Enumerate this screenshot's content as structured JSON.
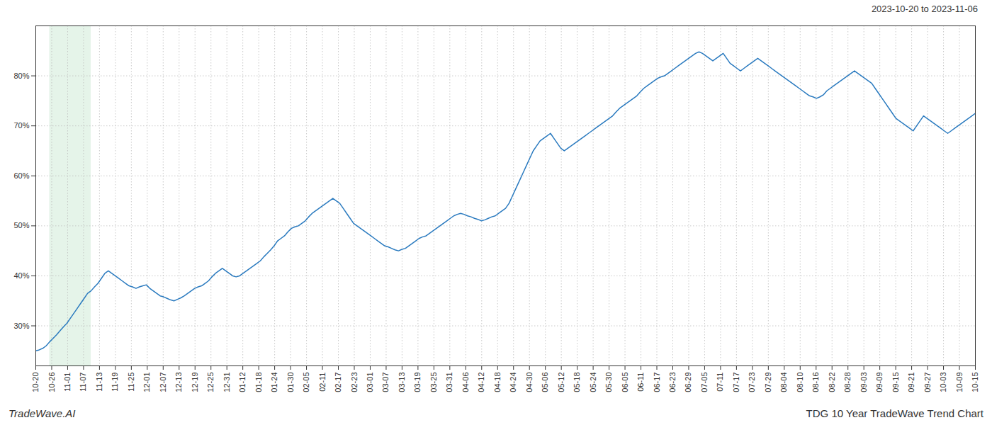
{
  "chart_data": {
    "type": "line",
    "title": "TDG 10 Year TradeWave Trend Chart",
    "subtitle": "2023-10-20 to 2023-11-06",
    "annotations": [
      {
        "type": "text",
        "text": "TradeWave.AI"
      },
      {
        "type": "span",
        "x": [
          4,
          16
        ],
        "color": "#d4edda"
      }
    ],
    "color": "#2a7abf",
    "grid": true,
    "x": [
      0,
      1,
      2,
      3,
      4,
      5,
      6,
      7,
      8,
      9,
      10,
      11,
      12,
      13,
      14,
      15,
      16,
      17,
      18,
      19,
      20,
      21,
      22,
      23,
      24,
      25,
      26,
      27,
      28,
      29,
      30,
      31,
      32,
      33,
      34,
      35,
      36,
      37,
      38,
      39,
      40,
      41,
      42,
      43,
      44,
      45,
      46,
      47,
      48,
      49,
      50,
      51,
      52,
      53,
      54,
      55,
      56,
      57,
      58,
      59,
      60,
      61,
      62,
      63,
      64,
      65,
      66,
      67,
      68,
      69,
      70,
      71,
      72,
      73,
      74,
      75,
      76,
      77,
      78,
      79,
      80,
      81,
      82,
      83,
      84,
      85,
      86,
      87,
      88,
      89,
      90,
      91,
      92,
      93,
      94,
      95,
      96,
      97,
      98,
      99,
      100,
      101,
      102,
      103,
      104,
      105,
      106,
      107,
      108,
      109,
      110,
      111,
      112,
      113,
      114,
      115,
      116,
      117,
      118,
      119,
      120,
      121,
      122,
      123,
      124,
      125,
      126,
      127,
      128,
      129,
      130,
      131,
      132,
      133,
      134,
      135,
      136,
      137,
      138,
      139,
      140,
      141,
      142,
      143,
      144,
      145,
      146,
      147,
      148,
      149,
      150,
      151,
      152,
      153,
      154,
      155,
      156,
      157,
      158,
      159,
      160,
      161,
      162,
      163,
      164,
      165,
      166,
      167,
      168,
      169,
      170,
      171,
      172,
      173,
      174,
      175,
      176,
      177,
      178,
      179,
      180,
      181,
      182,
      183,
      184,
      185,
      186,
      187,
      188,
      189,
      190,
      191,
      192,
      193,
      194,
      195,
      196,
      197,
      198,
      199,
      200,
      201,
      202,
      203,
      204,
      205,
      206,
      207,
      208,
      209,
      210,
      211,
      212,
      213,
      214,
      215,
      216,
      217,
      218,
      219,
      220,
      221,
      222,
      223,
      224,
      225,
      226,
      227,
      228,
      229,
      230,
      231,
      232,
      233,
      234,
      235,
      236,
      237,
      238,
      239,
      240,
      241,
      242,
      243,
      244,
      245,
      246,
      247,
      248,
      249,
      250,
      251,
      252,
      253,
      254,
      255,
      256,
      257,
      258,
      259,
      260,
      261,
      262,
      263,
      264,
      265,
      266,
      267,
      268,
      269,
      270,
      271,
      272
    ],
    "values": [
      25.0,
      25.2,
      25.5,
      26.0,
      26.8,
      27.5,
      28.2,
      29.0,
      29.8,
      30.5,
      31.5,
      32.5,
      33.5,
      34.5,
      35.5,
      36.5,
      37.0,
      37.8,
      38.5,
      39.5,
      40.5,
      41.0,
      40.5,
      40.0,
      39.5,
      39.0,
      38.5,
      38.0,
      37.8,
      37.5,
      37.8,
      38.0,
      38.2,
      37.5,
      37.0,
      36.5,
      36.0,
      35.8,
      35.5,
      35.2,
      35.0,
      35.3,
      35.6,
      36.0,
      36.5,
      37.0,
      37.5,
      37.8,
      38.0,
      38.5,
      39.0,
      39.8,
      40.5,
      41.0,
      41.5,
      41.0,
      40.5,
      40.0,
      39.8,
      40.0,
      40.5,
      41.0,
      41.5,
      42.0,
      42.5,
      43.0,
      43.8,
      44.5,
      45.2,
      46.0,
      47.0,
      47.5,
      48.0,
      48.8,
      49.5,
      49.8,
      50.0,
      50.5,
      51.0,
      51.8,
      52.5,
      53.0,
      53.5,
      54.0,
      54.5,
      55.0,
      55.5,
      55.0,
      54.5,
      53.5,
      52.5,
      51.5,
      50.5,
      50.0,
      49.5,
      49.0,
      48.5,
      48.0,
      47.5,
      47.0,
      46.5,
      46.0,
      45.8,
      45.5,
      45.2,
      45.0,
      45.3,
      45.5,
      46.0,
      46.5,
      47.0,
      47.5,
      47.8,
      48.0,
      48.5,
      49.0,
      49.5,
      50.0,
      50.5,
      51.0,
      51.5,
      52.0,
      52.3,
      52.5,
      52.3,
      52.0,
      51.8,
      51.5,
      51.3,
      51.0,
      51.2,
      51.5,
      51.8,
      52.0,
      52.5,
      53.0,
      53.5,
      54.5,
      56.0,
      57.5,
      59.0,
      60.5,
      62.0,
      63.5,
      65.0,
      66.0,
      67.0,
      67.5,
      68.0,
      68.5,
      67.5,
      66.5,
      65.5,
      65.0,
      65.5,
      66.0,
      66.5,
      67.0,
      67.5,
      68.0,
      68.5,
      69.0,
      69.5,
      70.0,
      70.5,
      71.0,
      71.5,
      72.0,
      72.8,
      73.5,
      74.0,
      74.5,
      75.0,
      75.5,
      76.0,
      76.8,
      77.5,
      78.0,
      78.5,
      79.0,
      79.5,
      79.8,
      80.0,
      80.5,
      81.0,
      81.5,
      82.0,
      82.5,
      83.0,
      83.5,
      84.0,
      84.5,
      84.8,
      84.5,
      84.0,
      83.5,
      83.0,
      83.5,
      84.0,
      84.5,
      83.5,
      82.5,
      82.0,
      81.5,
      81.0,
      81.5,
      82.0,
      82.5,
      83.0,
      83.5,
      83.0,
      82.5,
      82.0,
      81.5,
      81.0,
      80.5,
      80.0,
      79.5,
      79.0,
      78.5,
      78.0,
      77.5,
      77.0,
      76.5,
      76.0,
      75.8,
      75.5,
      75.8,
      76.2,
      77.0,
      77.5,
      78.0,
      78.5,
      79.0,
      79.5,
      80.0,
      80.5,
      81.0,
      80.5,
      80.0,
      79.5,
      79.0,
      78.5,
      77.5,
      76.5,
      75.5,
      74.5,
      73.5,
      72.5,
      71.5,
      71.0,
      70.5,
      70.0,
      69.5,
      69.0,
      70.0,
      71.0,
      72.0,
      71.5,
      71.0,
      70.5,
      70.0,
      69.5,
      69.0,
      68.5,
      69.0,
      69.5,
      70.0,
      70.5,
      71.0,
      71.5,
      72.0,
      72.5
    ],
    "xlim": [
      0,
      272
    ],
    "xticks": [
      {
        "value": 0,
        "label": "10-20"
      },
      {
        "value": 4.6102,
        "label": "10-26"
      },
      {
        "value": 9.2203,
        "label": "11-01"
      },
      {
        "value": 13.8305,
        "label": "11-07"
      },
      {
        "value": 18.4407,
        "label": "11-13"
      },
      {
        "value": 23.0508,
        "label": "11-19"
      },
      {
        "value": 27.661,
        "label": "11-25"
      },
      {
        "value": 32.2712,
        "label": "12-01"
      },
      {
        "value": 36.8814,
        "label": "12-07"
      },
      {
        "value": 41.4915,
        "label": "12-13"
      },
      {
        "value": 46.1017,
        "label": "12-19"
      },
      {
        "value": 50.7119,
        "label": "12-25"
      },
      {
        "value": 55.322,
        "label": "12-31"
      },
      {
        "value": 59.9322,
        "label": "01-12"
      },
      {
        "value": 64.5424,
        "label": "01-18"
      },
      {
        "value": 69.1525,
        "label": "01-24"
      },
      {
        "value": 73.7627,
        "label": "01-30"
      },
      {
        "value": 78.3729,
        "label": "02-05"
      },
      {
        "value": 82.9831,
        "label": "02-11"
      },
      {
        "value": 87.5932,
        "label": "02-17"
      },
      {
        "value": 92.2034,
        "label": "02-23"
      },
      {
        "value": 96.8136,
        "label": "03-01"
      },
      {
        "value": 101.4237,
        "label": "03-07"
      },
      {
        "value": 106.0339,
        "label": "03-13"
      },
      {
        "value": 110.6441,
        "label": "03-19"
      },
      {
        "value": 115.2542,
        "label": "03-25"
      },
      {
        "value": 119.8644,
        "label": "03-31"
      },
      {
        "value": 124.4746,
        "label": "04-06"
      },
      {
        "value": 129.0847,
        "label": "04-12"
      },
      {
        "value": 133.6949,
        "label": "04-18"
      },
      {
        "value": 138.3051,
        "label": "04-24"
      },
      {
        "value": 142.9153,
        "label": "04-30"
      },
      {
        "value": 147.5254,
        "label": "05-06"
      },
      {
        "value": 152.1356,
        "label": "05-12"
      },
      {
        "value": 156.7458,
        "label": "05-18"
      },
      {
        "value": 161.3559,
        "label": "05-24"
      },
      {
        "value": 165.9661,
        "label": "05-30"
      },
      {
        "value": 170.5763,
        "label": "06-05"
      },
      {
        "value": 175.1864,
        "label": "06-11"
      },
      {
        "value": 179.7966,
        "label": "06-17"
      },
      {
        "value": 184.4068,
        "label": "06-23"
      },
      {
        "value": 189.0169,
        "label": "06-29"
      },
      {
        "value": 193.6271,
        "label": "07-05"
      },
      {
        "value": 198.2373,
        "label": "07-11"
      },
      {
        "value": 202.8475,
        "label": "07-17"
      },
      {
        "value": 207.4576,
        "label": "07-23"
      },
      {
        "value": 212.0678,
        "label": "07-29"
      },
      {
        "value": 216.678,
        "label": "08-04"
      },
      {
        "value": 221.2881,
        "label": "08-10"
      },
      {
        "value": 225.8983,
        "label": "08-16"
      },
      {
        "value": 230.5085,
        "label": "08-22"
      },
      {
        "value": 235.1186,
        "label": "08-28"
      },
      {
        "value": 239.7288,
        "label": "09-03"
      },
      {
        "value": 244.339,
        "label": "09-09"
      },
      {
        "value": 248.9492,
        "label": "09-15"
      },
      {
        "value": 253.5593,
        "label": "09-21"
      },
      {
        "value": 258.1695,
        "label": "09-27"
      },
      {
        "value": 262.7797,
        "label": "10-03"
      },
      {
        "value": 267.3898,
        "label": "10-09"
      },
      {
        "value": 272,
        "label": "10-15"
      }
    ],
    "ylim": [
      22,
      90
    ],
    "yticks": [
      {
        "value": 30,
        "label": "30%"
      },
      {
        "value": 40,
        "label": "40%"
      },
      {
        "value": 50,
        "label": "50%"
      },
      {
        "value": 60,
        "label": "60%"
      },
      {
        "value": 70,
        "label": "70%"
      },
      {
        "value": 80,
        "label": "80%"
      }
    ]
  }
}
